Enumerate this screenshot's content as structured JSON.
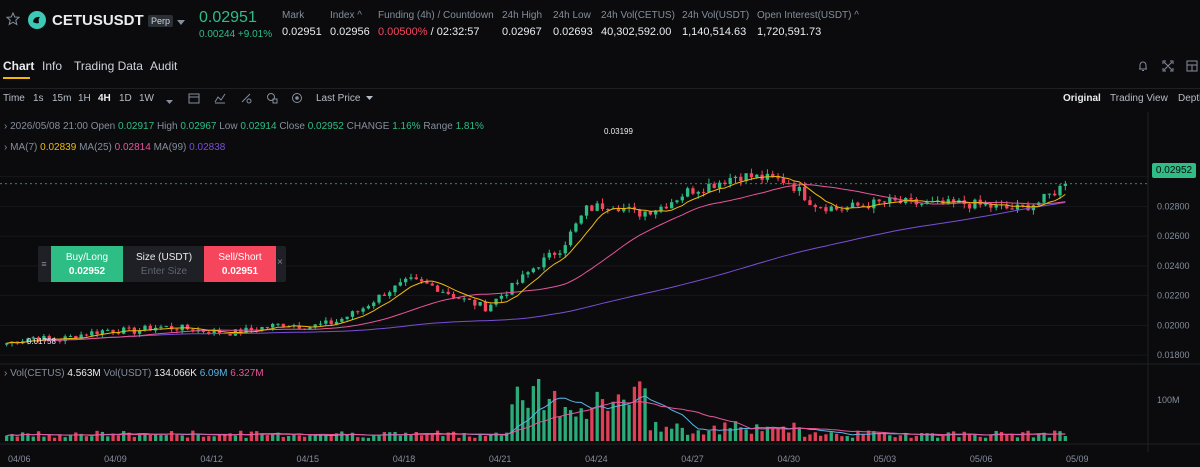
{
  "header": {
    "symbol": "CETUSUSDT",
    "badge": "Perp",
    "last_price": "0.02951",
    "change": "0.00244 +9.01%",
    "stats": [
      {
        "label": "Mark",
        "value": "0.02951",
        "x": 282
      },
      {
        "label": "Index ^",
        "value": "0.02956",
        "x": 330
      },
      {
        "label": "Funding (4h) / Countdown",
        "value": "",
        "x": 378
      },
      {
        "label": "24h High",
        "value": "0.02967",
        "x": 502
      },
      {
        "label": "24h Low",
        "value": "0.02693",
        "x": 553
      },
      {
        "label": "24h Vol(CETUS)",
        "value": "40,302,592.00",
        "x": 601
      },
      {
        "label": "24h Vol(USDT)",
        "value": "1,140,514.63",
        "x": 682
      },
      {
        "label": "Open Interest(USDT) ^",
        "value": "1,720,591.73",
        "x": 757
      }
    ],
    "funding_rate": "0.00500%",
    "countdown": "/ 02:32:57"
  },
  "tabs": [
    "Chart",
    "Info",
    "Trading Data",
    "Audit"
  ],
  "toolbar": {
    "intervals": [
      "Time",
      "1s",
      "15m",
      "1H",
      "4H",
      "1D",
      "1W"
    ],
    "price_type": "Last Price",
    "views": [
      "Original",
      "Trading View",
      "Depth"
    ]
  },
  "ohlc": {
    "date": "2026/05/08 21:00",
    "open_label": "Open",
    "open": "0.02917",
    "high_label": "High",
    "high": "0.02967",
    "low_label": "Low",
    "low": "0.02914",
    "close_label": "Close",
    "close": "0.02952",
    "change_label": "CHANGE",
    "change": "1.16%",
    "range_label": "Range",
    "range": "1.81%"
  },
  "ma": {
    "ma7_label": "MA(7)",
    "ma7": "0.02839",
    "ma25_label": "MA(25)",
    "ma25": "0.02814",
    "ma99_label": "MA(99)",
    "ma99": "0.02838"
  },
  "vol": {
    "vol1_label": "Vol(CETUS)",
    "vol1": "4.563M",
    "vol2_label": "Vol(USDT)",
    "vol2": "134.066K",
    "v_a": "6.09M",
    "v_b": "6.327M"
  },
  "trade_panel": {
    "buy_label": "Buy/Long",
    "buy_price": "0.02952",
    "size_label": "Size (USDT)",
    "size_placeholder": "Enter Size",
    "sell_label": "Sell/Short",
    "sell_price": "0.02951"
  },
  "annotations": {
    "high": "0.03199",
    "low": "0.01758"
  },
  "current_price_tag": "0.02952",
  "colors": {
    "up": "#2ebd85",
    "down": "#f6465d",
    "ma7": "#f0b90b",
    "ma25": "#e8559a",
    "ma99": "#7a4fd6"
  },
  "chart_data": {
    "type": "candlestick",
    "y_ticks": [
      "0.02952",
      "0.02800",
      "0.02600",
      "0.02400",
      "0.02200",
      "0.02000",
      "0.01800"
    ],
    "x_ticks": [
      "04/06",
      "04/09",
      "04/12",
      "04/15",
      "04/18",
      "04/21",
      "04/24",
      "04/27",
      "04/30",
      "05/03",
      "05/06",
      "05/09"
    ],
    "vol_tick": "100M",
    "ylim": [
      0.0172,
      0.033
    ],
    "close_anchors": [
      0.0188,
      0.0192,
      0.019,
      0.0194,
      0.0197,
      0.0196,
      0.0199,
      0.0198,
      0.0196,
      0.0195,
      0.0198,
      0.0201,
      0.0199,
      0.0202,
      0.021,
      0.0222,
      0.023,
      0.0226,
      0.0218,
      0.0212,
      0.0225,
      0.024,
      0.0252,
      0.0278,
      0.0282,
      0.0275,
      0.028,
      0.029,
      0.0295,
      0.0301,
      0.0299,
      0.0297,
      0.0282,
      0.0278,
      0.0281,
      0.0283,
      0.0282,
      0.0281,
      0.0282,
      0.028,
      0.0278,
      0.0283,
      0.0295
    ]
  }
}
